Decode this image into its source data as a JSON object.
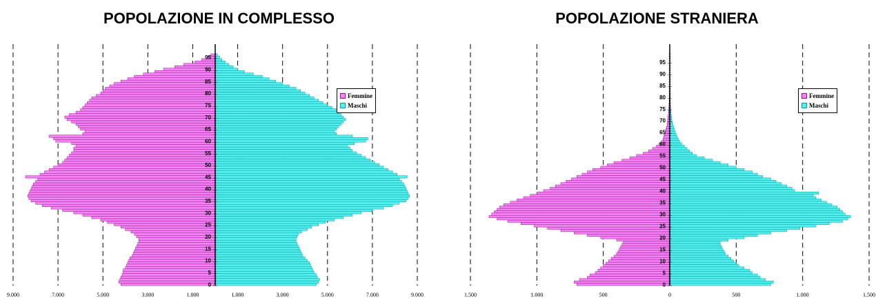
{
  "charts": {
    "left": {
      "title": "POPOLAZIONE IN COMPLESSO"
    },
    "right": {
      "title": "POPOLAZIONE STRANIERA"
    }
  },
  "colors": {
    "female": "#ee88ee",
    "female_stroke": "#b000b0",
    "male": "#55eeee",
    "male_stroke": "#00a0a0"
  },
  "chart_data": [
    {
      "type": "bar",
      "orientation": "horizontal-pyramid",
      "title": "POPOLAZIONE IN COMPLESSO",
      "xlim": [
        -9000,
        9000
      ],
      "xticks": [
        -9000,
        -7000,
        -5000,
        -3000,
        -1000,
        1000,
        3000,
        5000,
        7000,
        9000
      ],
      "xtick_labels": [
        "9.000",
        "7.000",
        "5.000",
        "3.000",
        "1.000",
        "1.000",
        "3.000",
        "5.000",
        "7.000",
        "9.000"
      ],
      "age_labels": [
        "0",
        "5",
        "10",
        "15",
        "20",
        "25",
        "30",
        "35",
        "40",
        "45",
        "50",
        "55",
        "60",
        "65",
        "70",
        "75",
        "80",
        "85",
        "90",
        "95"
      ],
      "legend": [
        "Femmine",
        "Maschi"
      ],
      "legend_position": "top-right",
      "series": [
        {
          "name": "Femmine",
          "values": [
            4200,
            4300,
            4250,
            4200,
            4150,
            4100,
            4100,
            4000,
            3950,
            3900,
            3850,
            3800,
            3700,
            3650,
            3600,
            3550,
            3500,
            3450,
            3400,
            3400,
            3500,
            3600,
            3750,
            4000,
            4200,
            4500,
            4800,
            5100,
            5500,
            5900,
            6300,
            6800,
            7300,
            7700,
            8000,
            8200,
            8300,
            8350,
            8300,
            8250,
            8200,
            8150,
            8100,
            8000,
            7900,
            8450,
            7800,
            7600,
            7400,
            7200,
            7000,
            6800,
            6700,
            6600,
            6500,
            6400,
            6300,
            6300,
            6200,
            6400,
            7100,
            7200,
            7400,
            5900,
            5800,
            6000,
            6100,
            6200,
            6400,
            6600,
            6700,
            6500,
            6200,
            6000,
            5900,
            5800,
            5700,
            5600,
            5500,
            5300,
            5100,
            5000,
            4900,
            4700,
            4500,
            4200,
            3900,
            3600,
            3200,
            2700,
            2300,
            1800,
            1400,
            900,
            600,
            350,
            200
          ]
        },
        {
          "name": "Maschi",
          "values": [
            4500,
            4600,
            4650,
            4550,
            4500,
            4400,
            4350,
            4300,
            4250,
            4200,
            4100,
            4000,
            3900,
            3850,
            3800,
            3750,
            3700,
            3650,
            3600,
            3600,
            3650,
            3700,
            3850,
            4100,
            4300,
            4600,
            4900,
            5300,
            5700,
            6100,
            6500,
            7000,
            7500,
            7900,
            8200,
            8500,
            8600,
            8650,
            8600,
            8550,
            8500,
            8450,
            8400,
            8300,
            8200,
            8550,
            8100,
            7900,
            7700,
            7500,
            7300,
            7100,
            6900,
            6700,
            6500,
            6300,
            6100,
            6000,
            5900,
            6200,
            6700,
            6800,
            6100,
            5400,
            5300,
            5400,
            5500,
            5600,
            5700,
            5800,
            5700,
            5600,
            5500,
            5400,
            5200,
            5000,
            4800,
            4600,
            4400,
            4200,
            4000,
            3800,
            3600,
            3300,
            3000,
            2700,
            2400,
            2100,
            1700,
            1300,
            1000,
            800,
            600,
            450,
            300,
            200,
            100
          ]
        }
      ]
    },
    {
      "type": "bar",
      "orientation": "horizontal-pyramid",
      "title": "POPOLAZIONE STRANIERA",
      "xlim": [
        -1500,
        1500
      ],
      "xticks": [
        -1500,
        -1000,
        -500,
        0,
        500,
        1000,
        1500
      ],
      "xtick_labels": [
        "1.500",
        "1.000",
        "500",
        "0",
        "500",
        "1.000",
        "1.500"
      ],
      "age_labels": [
        "0",
        "5",
        "10",
        "15",
        "20",
        "25",
        "30",
        "35",
        "40",
        "45",
        "50",
        "55",
        "60",
        "65",
        "70",
        "75",
        "80",
        "85",
        "90",
        "95"
      ],
      "legend": [
        "Femmine",
        "Maschi"
      ],
      "legend_position": "top-right",
      "series": [
        {
          "name": "Femmine",
          "values": [
            700,
            720,
            680,
            620,
            600,
            560,
            540,
            520,
            500,
            480,
            460,
            440,
            420,
            400,
            390,
            380,
            370,
            360,
            350,
            400,
            520,
            620,
            720,
            820,
            920,
            1020,
            1120,
            1220,
            1300,
            1360,
            1340,
            1320,
            1300,
            1280,
            1250,
            1200,
            1150,
            1100,
            1050,
            1000,
            950,
            900,
            860,
            820,
            780,
            740,
            700,
            660,
            620,
            580,
            520,
            470,
            420,
            360,
            300,
            250,
            200,
            160,
            130,
            100,
            80,
            60,
            50,
            45,
            40,
            35,
            30,
            25,
            20,
            18,
            16,
            14,
            12,
            10,
            8,
            7,
            6,
            5,
            4,
            4,
            3,
            3,
            2,
            2,
            2,
            1,
            1,
            1,
            1,
            1,
            1,
            1,
            1,
            1,
            1,
            1,
            1,
            1,
            1
          ]
        },
        {
          "name": "Maschi",
          "values": [
            760,
            780,
            720,
            680,
            660,
            620,
            600,
            560,
            520,
            500,
            480,
            460,
            440,
            420,
            410,
            400,
            390,
            380,
            380,
            440,
            560,
            660,
            760,
            880,
            980,
            1100,
            1200,
            1300,
            1340,
            1360,
            1320,
            1300,
            1280,
            1260,
            1220,
            1180,
            1140,
            1100,
            1080,
            1120,
            940,
            920,
            880,
            840,
            800,
            760,
            700,
            660,
            620,
            560,
            500,
            440,
            380,
            320,
            260,
            200,
            170,
            150,
            130,
            110,
            90,
            75,
            65,
            55,
            48,
            42,
            36,
            30,
            25,
            20,
            16,
            14,
            12,
            10,
            8,
            7,
            6,
            5,
            4,
            4,
            3,
            3,
            2,
            2,
            2,
            1,
            1,
            1,
            1,
            1,
            1,
            1,
            1,
            1,
            1,
            1,
            1,
            1,
            1
          ]
        }
      ]
    }
  ]
}
